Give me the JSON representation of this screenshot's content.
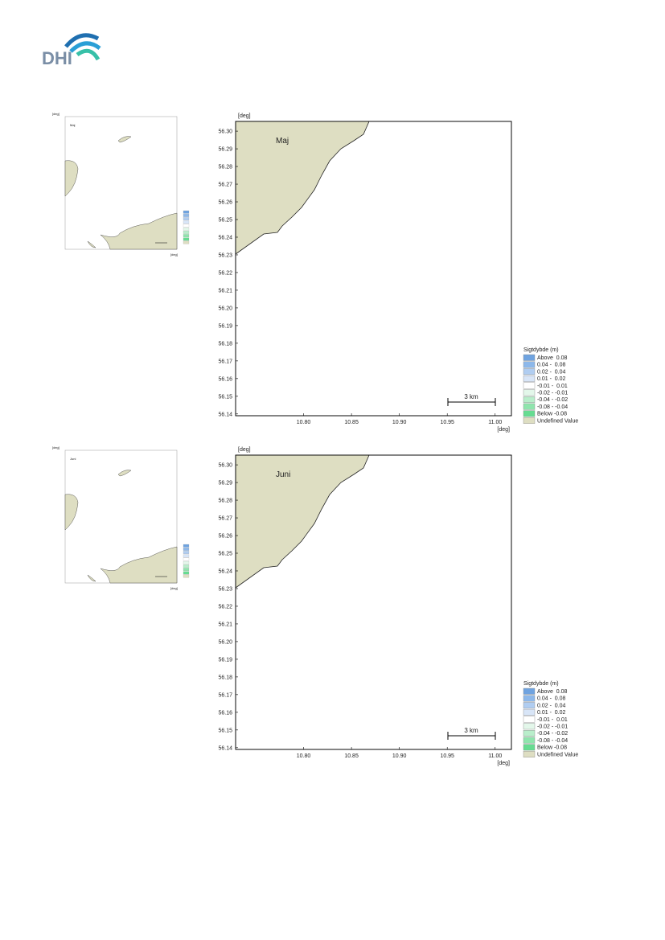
{
  "header": {
    "logo": "DHI"
  },
  "panels": [
    {
      "title": "Maj",
      "x_unit": "[deg]",
      "y_unit": "[deg]",
      "scale_bar": "3 km",
      "xlim": [
        10.729,
        11.017
      ],
      "ylim": [
        56.139,
        56.3055
      ],
      "xticks": [
        {
          "value": 10.8,
          "label": "10.80"
        },
        10.85,
        {
          "value": 10.9,
          "label": "10.90"
        },
        10.95,
        {
          "value": 11.0,
          "label": "11.00"
        }
      ],
      "yticks": [
        56.14,
        56.15,
        56.16,
        56.17,
        56.18,
        56.19,
        {
          "value": 56.2,
          "label": "56.20"
        },
        56.21,
        56.22,
        56.23,
        56.24,
        56.25,
        56.26,
        56.27,
        56.28,
        56.29,
        {
          "value": 56.3,
          "label": "56.30"
        }
      ],
      "legend": {
        "title": "Sigtdybde (m)",
        "items": [
          {
            "label": "Above  0.08",
            "color": "#6fa3e0"
          },
          {
            "label": "0.04 -  0.08",
            "color": "#8db8ea"
          },
          {
            "label": "0.02 -  0.04",
            "color": "#b0cdf1"
          },
          {
            "label": "0.01 -  0.02",
            "color": "#d8e5f7"
          },
          {
            "label": "-0.01 -  0.01",
            "color": "#ffffff"
          },
          {
            "label": "-0.02 - -0.01",
            "color": "#e3f7ea"
          },
          {
            "label": "-0.04 - -0.02",
            "color": "#b9eecb"
          },
          {
            "label": "-0.08 - -0.04",
            "color": "#8fe5ad"
          },
          {
            "label": "Below -0.08",
            "color": "#66dc91"
          },
          {
            "label": "Undefined Value",
            "color": "#dedec2"
          }
        ]
      }
    },
    {
      "title": "Juni",
      "x_unit": "[deg]",
      "y_unit": "[deg]",
      "scale_bar": "3 km",
      "xlim": [
        10.729,
        11.017
      ],
      "ylim": [
        56.139,
        56.3055
      ],
      "xticks": [
        {
          "value": 10.8,
          "label": "10.80"
        },
        10.85,
        {
          "value": 10.9,
          "label": "10.90"
        },
        10.95,
        {
          "value": 11.0,
          "label": "11.00"
        }
      ],
      "yticks": [
        56.14,
        56.15,
        56.16,
        56.17,
        56.18,
        56.19,
        {
          "value": 56.2,
          "label": "56.20"
        },
        56.21,
        56.22,
        56.23,
        56.24,
        56.25,
        56.26,
        56.27,
        56.28,
        56.29,
        {
          "value": 56.3,
          "label": "56.30"
        }
      ],
      "legend": {
        "title": "Sigtdybde (m)",
        "items": [
          {
            "label": "Above  0.08",
            "color": "#6fa3e0"
          },
          {
            "label": "0.04 -  0.08",
            "color": "#8db8ea"
          },
          {
            "label": "0.02 -  0.04",
            "color": "#b0cdf1"
          },
          {
            "label": "0.01 -  0.02",
            "color": "#d8e5f7"
          },
          {
            "label": "-0.01 -  0.01",
            "color": "#ffffff"
          },
          {
            "label": "-0.02 - -0.01",
            "color": "#e3f7ea"
          },
          {
            "label": "-0.04 - -0.02",
            "color": "#b9eecb"
          },
          {
            "label": "-0.08 - -0.04",
            "color": "#8fe5ad"
          },
          {
            "label": "Below -0.08",
            "color": "#66dc91"
          },
          {
            "label": "Undefined Value",
            "color": "#dedec2"
          }
        ]
      }
    }
  ]
}
